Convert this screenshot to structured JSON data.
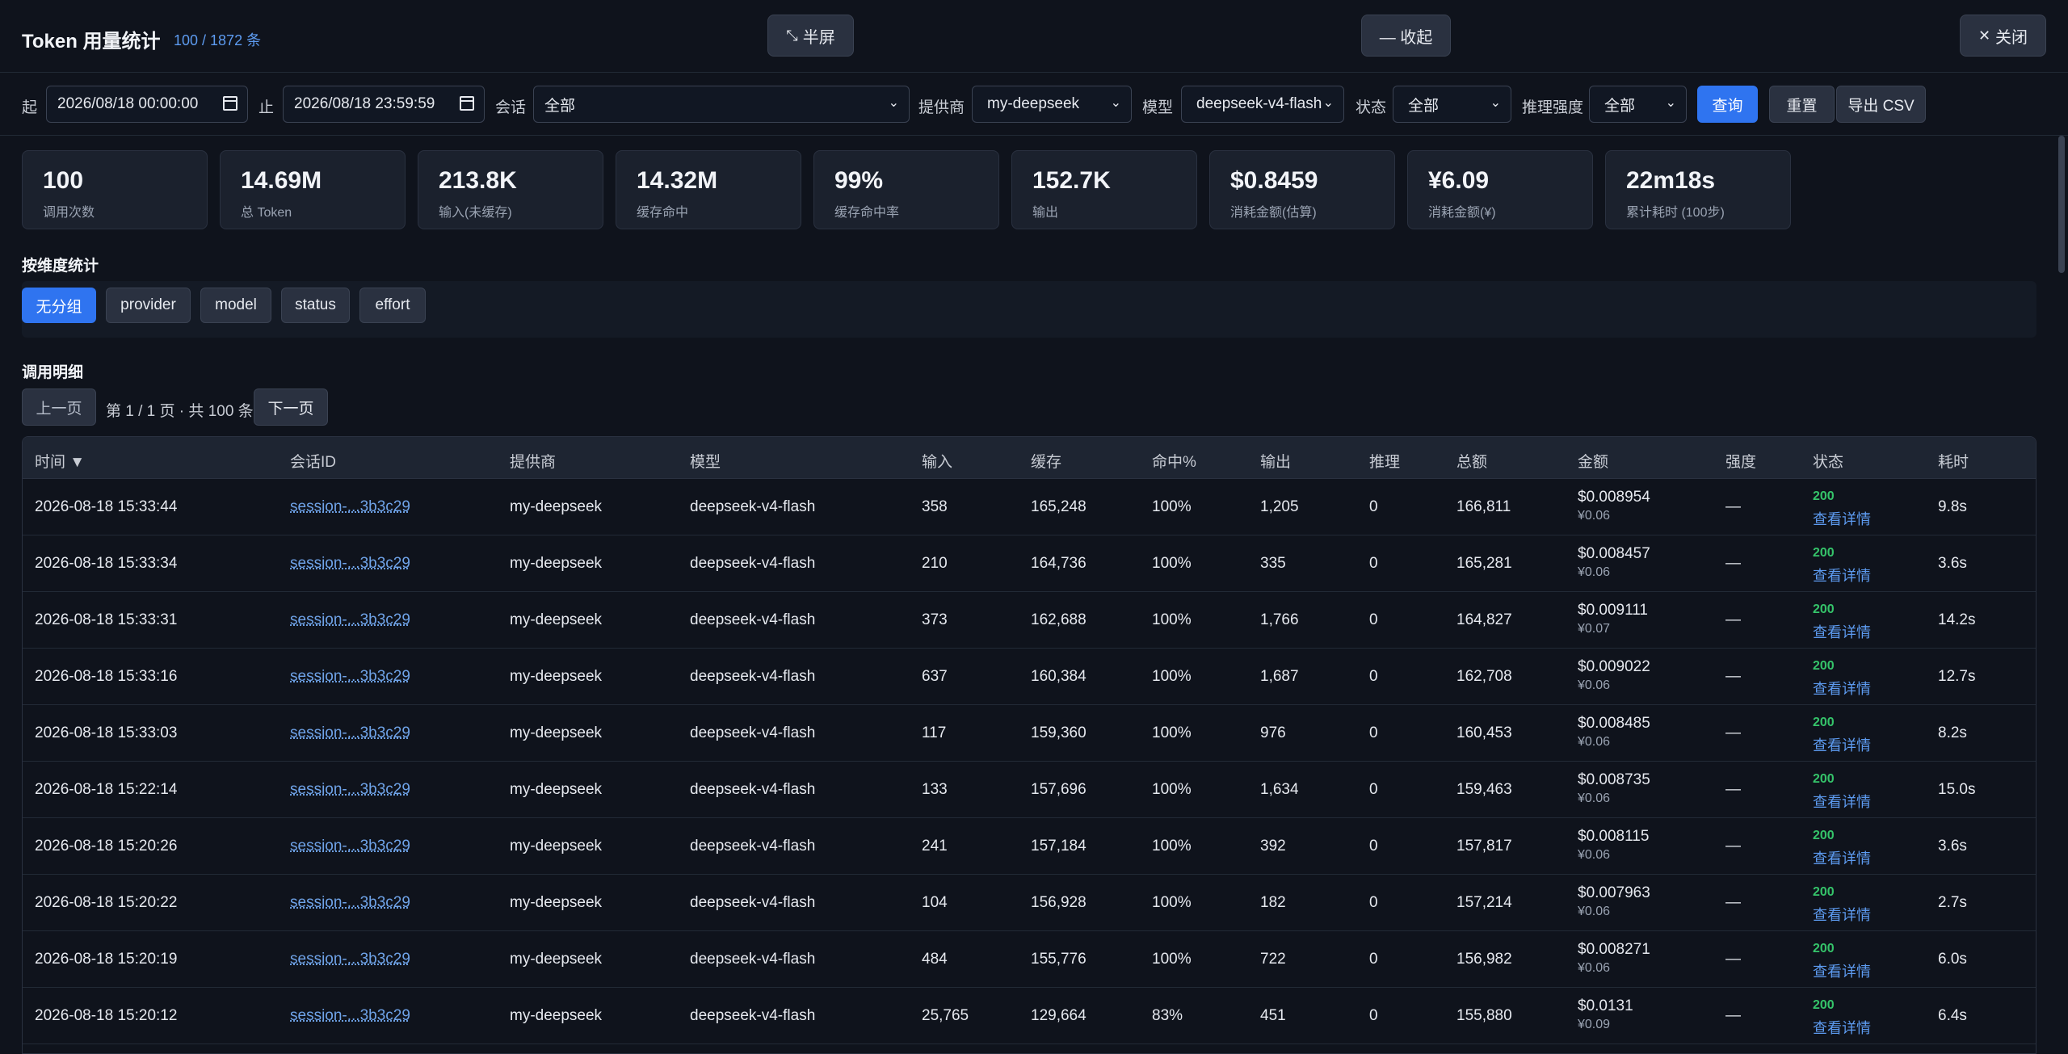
{
  "header": {
    "title": "Token 用量统计",
    "count": "100 / 1872 条",
    "half_label": "半屏",
    "collapse_label": "— 收起",
    "close_label": "关闭"
  },
  "filters": {
    "start_label": "起",
    "start_value": "2026/08/18 00:00:00",
    "end_label": "止",
    "end_value": "2026/08/18 23:59:59",
    "session_label": "会话",
    "session_value": "全部",
    "provider_label": "提供商",
    "provider_value": "my-deepseek",
    "model_label": "模型",
    "model_value": "deepseek-v4-flash",
    "status_label": "状态",
    "status_value": "全部",
    "effort_label": "推理强度",
    "effort_value": "全部",
    "query_label": "查询",
    "reset_label": "重置",
    "export_label": "导出 CSV"
  },
  "stats": [
    {
      "value": "100",
      "label": "调用次数"
    },
    {
      "value": "14.69M",
      "label": "总 Token"
    },
    {
      "value": "213.8K",
      "label": "输入(未缓存)"
    },
    {
      "value": "14.32M",
      "label": "缓存命中"
    },
    {
      "value": "99%",
      "label": "缓存命中率"
    },
    {
      "value": "152.7K",
      "label": "输出"
    },
    {
      "value": "$0.8459",
      "label": "消耗金额(估算)"
    },
    {
      "value": "¥6.09",
      "label": "消耗金额(¥)"
    },
    {
      "value": "22m18s",
      "label": "累计耗时 (100步)"
    }
  ],
  "dimensions": {
    "title": "按维度统计",
    "chips": [
      "无分组",
      "provider",
      "model",
      "status",
      "effort"
    ]
  },
  "details": {
    "title": "调用明细",
    "prev_label": "上一页",
    "page_info": "第 1 / 1 页 · 共 100 条",
    "next_label": "下一页"
  },
  "table": {
    "headers": [
      "时间 ▼",
      "会话ID",
      "提供商",
      "模型",
      "输入",
      "缓存",
      "命中%",
      "输出",
      "推理",
      "总额",
      "金额",
      "强度",
      "状态",
      "耗时"
    ],
    "rows": [
      {
        "time": "2026-08-18 15:33:44",
        "session": "session-...3b3c29",
        "provider": "my-deepseek",
        "model": "deepseek-v4-flash",
        "input": "358",
        "cache": "165,248",
        "hit": "100%",
        "output": "1,205",
        "reasoning": "0",
        "total": "166,811",
        "usd": "$0.008954",
        "cny": "¥0.06",
        "effort": "—",
        "status": "200",
        "detail": "查看详情",
        "duration": "9.8s"
      },
      {
        "time": "2026-08-18 15:33:34",
        "session": "session-...3b3c29",
        "provider": "my-deepseek",
        "model": "deepseek-v4-flash",
        "input": "210",
        "cache": "164,736",
        "hit": "100%",
        "output": "335",
        "reasoning": "0",
        "total": "165,281",
        "usd": "$0.008457",
        "cny": "¥0.06",
        "effort": "—",
        "status": "200",
        "detail": "查看详情",
        "duration": "3.6s"
      },
      {
        "time": "2026-08-18 15:33:31",
        "session": "session-...3b3c29",
        "provider": "my-deepseek",
        "model": "deepseek-v4-flash",
        "input": "373",
        "cache": "162,688",
        "hit": "100%",
        "output": "1,766",
        "reasoning": "0",
        "total": "164,827",
        "usd": "$0.009111",
        "cny": "¥0.07",
        "effort": "—",
        "status": "200",
        "detail": "查看详情",
        "duration": "14.2s"
      },
      {
        "time": "2026-08-18 15:33:16",
        "session": "session-...3b3c29",
        "provider": "my-deepseek",
        "model": "deepseek-v4-flash",
        "input": "637",
        "cache": "160,384",
        "hit": "100%",
        "output": "1,687",
        "reasoning": "0",
        "total": "162,708",
        "usd": "$0.009022",
        "cny": "¥0.06",
        "effort": "—",
        "status": "200",
        "detail": "查看详情",
        "duration": "12.7s"
      },
      {
        "time": "2026-08-18 15:33:03",
        "session": "session-...3b3c29",
        "provider": "my-deepseek",
        "model": "deepseek-v4-flash",
        "input": "117",
        "cache": "159,360",
        "hit": "100%",
        "output": "976",
        "reasoning": "0",
        "total": "160,453",
        "usd": "$0.008485",
        "cny": "¥0.06",
        "effort": "—",
        "status": "200",
        "detail": "查看详情",
        "duration": "8.2s"
      },
      {
        "time": "2026-08-18 15:22:14",
        "session": "session-...3b3c29",
        "provider": "my-deepseek",
        "model": "deepseek-v4-flash",
        "input": "133",
        "cache": "157,696",
        "hit": "100%",
        "output": "1,634",
        "reasoning": "0",
        "total": "159,463",
        "usd": "$0.008735",
        "cny": "¥0.06",
        "effort": "—",
        "status": "200",
        "detail": "查看详情",
        "duration": "15.0s"
      },
      {
        "time": "2026-08-18 15:20:26",
        "session": "session-...3b3c29",
        "provider": "my-deepseek",
        "model": "deepseek-v4-flash",
        "input": "241",
        "cache": "157,184",
        "hit": "100%",
        "output": "392",
        "reasoning": "0",
        "total": "157,817",
        "usd": "$0.008115",
        "cny": "¥0.06",
        "effort": "—",
        "status": "200",
        "detail": "查看详情",
        "duration": "3.6s"
      },
      {
        "time": "2026-08-18 15:20:22",
        "session": "session-...3b3c29",
        "provider": "my-deepseek",
        "model": "deepseek-v4-flash",
        "input": "104",
        "cache": "156,928",
        "hit": "100%",
        "output": "182",
        "reasoning": "0",
        "total": "157,214",
        "usd": "$0.007963",
        "cny": "¥0.06",
        "effort": "—",
        "status": "200",
        "detail": "查看详情",
        "duration": "2.7s"
      },
      {
        "time": "2026-08-18 15:20:19",
        "session": "session-...3b3c29",
        "provider": "my-deepseek",
        "model": "deepseek-v4-flash",
        "input": "484",
        "cache": "155,776",
        "hit": "100%",
        "output": "722",
        "reasoning": "0",
        "total": "156,982",
        "usd": "$0.008271",
        "cny": "¥0.06",
        "effort": "—",
        "status": "200",
        "detail": "查看详情",
        "duration": "6.0s"
      },
      {
        "time": "2026-08-18 15:20:12",
        "session": "session-...3b3c29",
        "provider": "my-deepseek",
        "model": "deepseek-v4-flash",
        "input": "25,765",
        "cache": "129,664",
        "hit": "83%",
        "output": "451",
        "reasoning": "0",
        "total": "155,880",
        "usd": "$0.0131",
        "cny": "¥0.09",
        "effort": "—",
        "status": "200",
        "detail": "查看详情",
        "duration": "6.4s"
      }
    ]
  },
  "colors": {
    "background": "#0f131c",
    "accent": "#2f74f0",
    "success": "#35c46a",
    "link": "#5d9bf0"
  }
}
